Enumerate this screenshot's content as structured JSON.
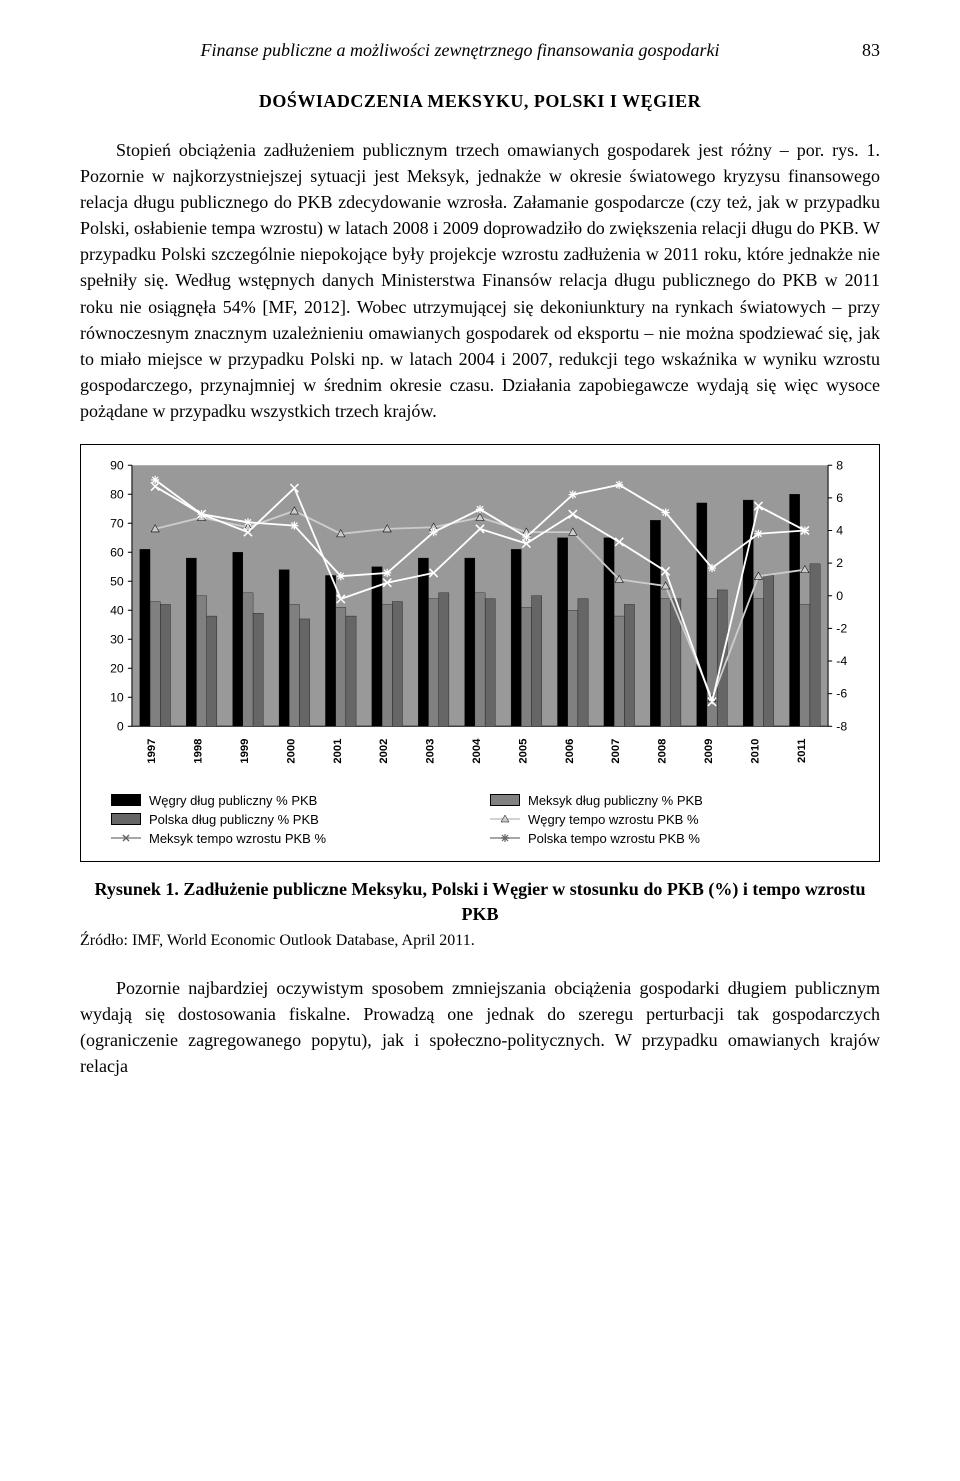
{
  "header": {
    "title": "Finanse publiczne a możliwości zewnętrznego finansowania gospodarki",
    "page_number": "83"
  },
  "section_heading": "DOŚWIADCZENIA MEKSYKU, POLSKI I WĘGIER",
  "paragraph_1": "Stopień obciążenia zadłużeniem publicznym trzech omawianych gospodarek jest różny – por. rys. 1. Pozornie w najkorzystniejszej sytuacji jest Meksyk, jednakże w okresie światowego kryzysu finansowego relacja długu publicznego do PKB zdecydowanie wzrosła. Załamanie gospodarcze (czy też, jak w przypadku Polski, osłabienie tempa wzrostu) w latach 2008 i 2009 doprowadziło do zwiększenia relacji długu do PKB. W przypadku Polski szczególnie niepokojące były projekcje wzrostu zadłużenia w 2011 roku, które jednakże nie spełniły się. Według wstępnych danych Ministerstwa Finansów relacja długu publicznego do PKB w 2011 roku nie osiągnęła 54% [MF, 2012]. Wobec utrzymującej się dekoniunktury na rynkach światowych – przy równoczesnym znacznym uzależnieniu omawianych gospodarek od eksportu – nie można spodziewać się, jak to miało miejsce w przypadku Polski np. w latach 2004 i 2007, redukcji tego wskaźnika w wyniku wzrostu gospodarczego, przynajmniej w średnim okresie czasu. Działania zapobiegawcze wydają się więc wysoce pożądane w przypadku wszystkich trzech krajów.",
  "chart": {
    "type": "bar_and_line",
    "categories": [
      "1997",
      "1998",
      "1999",
      "2000",
      "2001",
      "2002",
      "2003",
      "2004",
      "2005",
      "2006",
      "2007",
      "2008",
      "2009",
      "2010",
      "2011"
    ],
    "left_axis": {
      "min": 0,
      "max": 90,
      "step": 10
    },
    "right_axis": {
      "min": -8,
      "max": 8,
      "step": 2
    },
    "series_bars": [
      {
        "name": "Węgry dług publiczny % PKB",
        "color": "#000000",
        "values": [
          61,
          58,
          60,
          54,
          52,
          55,
          58,
          58,
          61,
          65,
          65,
          71,
          77,
          78,
          80
        ]
      },
      {
        "name": "Meksyk dług publiczny % PKB",
        "color": "#808080",
        "values": [
          43,
          45,
          46,
          42,
          41,
          42,
          44,
          46,
          41,
          40,
          38,
          44,
          44,
          44,
          42
        ]
      },
      {
        "name": "Polska dług publiczny % PKB",
        "color": "#666666",
        "values": [
          42,
          38,
          39,
          37,
          38,
          43,
          46,
          44,
          45,
          44,
          42,
          44,
          47,
          52,
          56
        ]
      }
    ],
    "series_lines": [
      {
        "name": "Węgry tempo wzrostu PKB %",
        "color": "#cccccc",
        "marker": "triangle",
        "values": [
          4.1,
          4.8,
          4.2,
          5.2,
          3.8,
          4.1,
          4.2,
          4.8,
          3.9,
          3.9,
          1.0,
          0.6,
          -6.3,
          1.2,
          1.6
        ]
      },
      {
        "name": "Meksyk tempo wzrostu PKB %",
        "color": "#ffffff",
        "marker": "x",
        "values": [
          6.7,
          5.0,
          3.9,
          6.6,
          -0.2,
          0.8,
          1.4,
          4.1,
          3.2,
          5.0,
          3.3,
          1.5,
          -6.5,
          5.5,
          4.0
        ]
      },
      {
        "name": "Polska tempo wzrostu PKB %",
        "color": "#ffffff",
        "marker": "star",
        "values": [
          7.1,
          5.0,
          4.5,
          4.3,
          1.2,
          1.4,
          3.9,
          5.3,
          3.6,
          6.2,
          6.8,
          5.1,
          1.7,
          3.8,
          4.0
        ]
      }
    ],
    "plot_background": "#999999",
    "axis_font_size": 12,
    "legend_font_size": 13
  },
  "legend_items": [
    {
      "label": "Węgry dług publiczny % PKB",
      "type": "bar",
      "color": "#000000"
    },
    {
      "label": "Meksyk dług publiczny % PKB",
      "type": "bar",
      "color": "#808080"
    },
    {
      "label": "Polska dług publiczny % PKB",
      "type": "bar",
      "color": "#666666"
    },
    {
      "label": "Węgry tempo wzrostu PKB %",
      "type": "line",
      "color": "#cccccc",
      "marker": "triangle"
    },
    {
      "label": "Meksyk tempo wzrostu PKB %",
      "type": "line",
      "color": "#ffffff",
      "marker": "x"
    },
    {
      "label": "Polska tempo wzrostu PKB %",
      "type": "line",
      "color": "#ffffff",
      "marker": "star"
    }
  ],
  "figure_caption": "Rysunek 1. Zadłużenie publiczne Meksyku, Polski i Węgier w stosunku do PKB (%) i tempo wzrostu PKB",
  "source": "Źródło: IMF, World Economic Outlook Database, April 2011.",
  "paragraph_2": "Pozornie najbardziej oczywistym sposobem zmniejszania obciążenia gospodarki długiem publicznym wydają się dostosowania fiskalne. Prowadzą one jednak do szeregu perturbacji tak gospodarczych (ograniczenie zagregowanego popytu), jak i społeczno-politycznych. W przypadku omawianych krajów relacja"
}
